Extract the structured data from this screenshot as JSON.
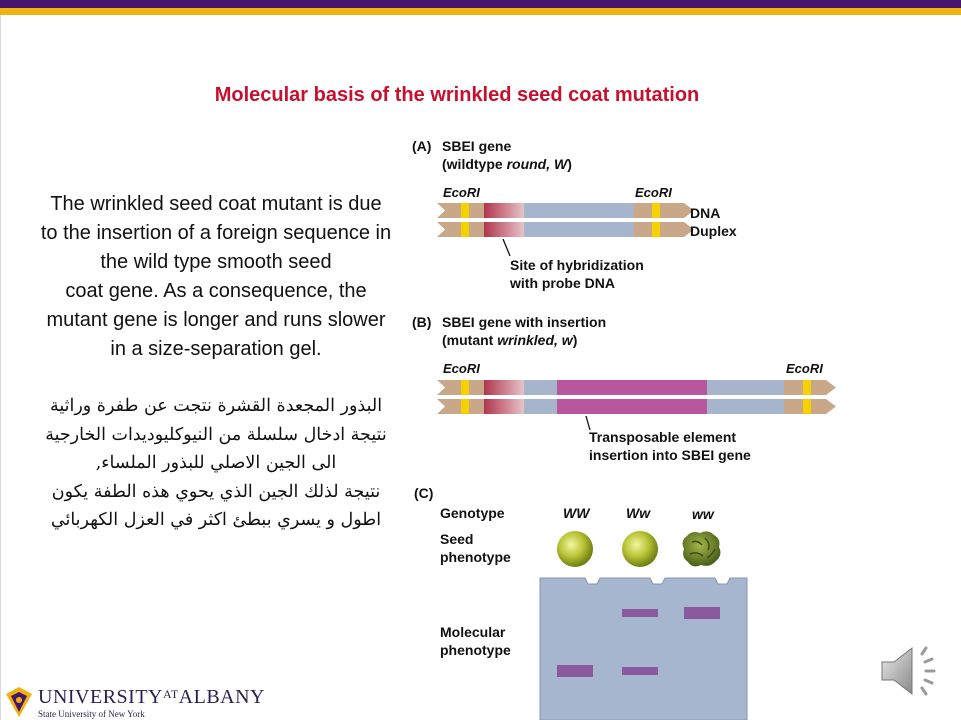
{
  "title": "Molecular basis of the wrinkled seed coat mutation",
  "body_english": [
    "The wrinkled seed coat mutant is due to the insertion of a foreign sequence in the wild type smooth seed",
    "coat gene. As a consequence, the mutant gene is longer and runs slower in a size-separation gel."
  ],
  "body_arabic": [
    "البذور المجعدة القشرة نتجت عن طفرة وراثية نتيجة ادخال سلسلة من النيوكليوديدات الخارجية الى الجين الاصلي للبذور الملساء,",
    "نتيجة لذلك الجين الذي يحوي هذه الطفة يكون اطول و يسري ببطئ اكثر في العزل الكهربائي"
  ],
  "figure": {
    "panel_a": {
      "label": "(A)",
      "title_line1": "SBEI gene",
      "title_line2_prefix": "(wildtype ",
      "title_line2_italic": "round, W",
      "title_line2_suffix": ")",
      "ecori_left": "EcoRI",
      "ecori_right": "EcoRI",
      "duplex_line1": "DNA",
      "duplex_line2": "Duplex",
      "hybrid_line1": "Site of hybridization",
      "hybrid_line2": "with probe DNA"
    },
    "panel_b": {
      "label": "(B)",
      "title_line1": "SBEI gene with insertion",
      "title_line2_prefix": "(mutant ",
      "title_line2_italic": "wrinkled, w",
      "title_line2_suffix": ")",
      "ecori_left": "EcoRI",
      "ecori_right": "EcoRI",
      "transposon_line1": "Transposable element",
      "transposon_line2": "insertion into SBEI gene"
    },
    "panel_c": {
      "label": "(C)",
      "genotype_label": "Genotype",
      "genotypes": [
        "WW",
        "Ww",
        "ww"
      ],
      "seed_line1": "Seed",
      "seed_line2": "phenotype",
      "molecular_line1": "Molecular",
      "molecular_line2": "phenotype"
    }
  },
  "logo": {
    "name_left": "UNIVERSITY",
    "name_at": "AT",
    "name_right": "ALBANY",
    "subtitle": "State University of New York"
  },
  "icons": [
    "speaker-icon",
    "university-seal-icon"
  ],
  "colors": {
    "title_red": "#c8102e",
    "header_purple": "#46166b",
    "header_gold": "#eeb211",
    "insertion_magenta": "#b8579d",
    "gel_blue": "#a7b6cf",
    "band_purple": "#8b5a9e"
  }
}
